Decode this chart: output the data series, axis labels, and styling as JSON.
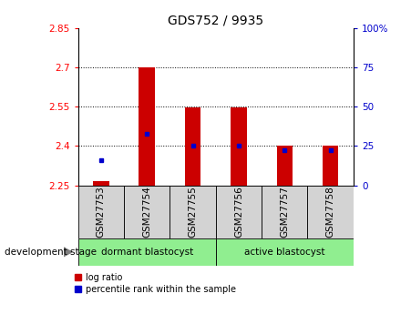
{
  "title": "GDS752 / 9935",
  "samples": [
    "GSM27753",
    "GSM27754",
    "GSM27755",
    "GSM27756",
    "GSM27757",
    "GSM27758"
  ],
  "log_ratio": [
    2.265,
    2.7,
    2.548,
    2.548,
    2.4,
    2.4
  ],
  "percentile_rank_val": [
    2.345,
    2.448,
    2.401,
    2.401,
    2.385,
    2.385
  ],
  "bar_bottom": 2.25,
  "ylim_left": [
    2.25,
    2.85
  ],
  "yticks_left": [
    2.25,
    2.4,
    2.55,
    2.7,
    2.85
  ],
  "yticks_right_pct": [
    0,
    25,
    50,
    75,
    100
  ],
  "ytick_labels_left": [
    "2.25",
    "2.4",
    "2.55",
    "2.7",
    "2.85"
  ],
  "ytick_labels_right": [
    "0",
    "25",
    "50",
    "75",
    "100%"
  ],
  "bar_color": "#cc0000",
  "blue_color": "#0000cc",
  "dormant_label": "dormant blastocyst",
  "active_label": "active blastocyst",
  "sample_box_color": "#d3d3d3",
  "green_color": "#90ee90",
  "stage_label": "development stage",
  "legend_log_ratio": "log ratio",
  "legend_percentile": "percentile rank within the sample",
  "bar_width": 0.35,
  "title_fontsize": 10,
  "tick_fontsize": 7.5,
  "label_fontsize": 7.5,
  "legend_fontsize": 7
}
